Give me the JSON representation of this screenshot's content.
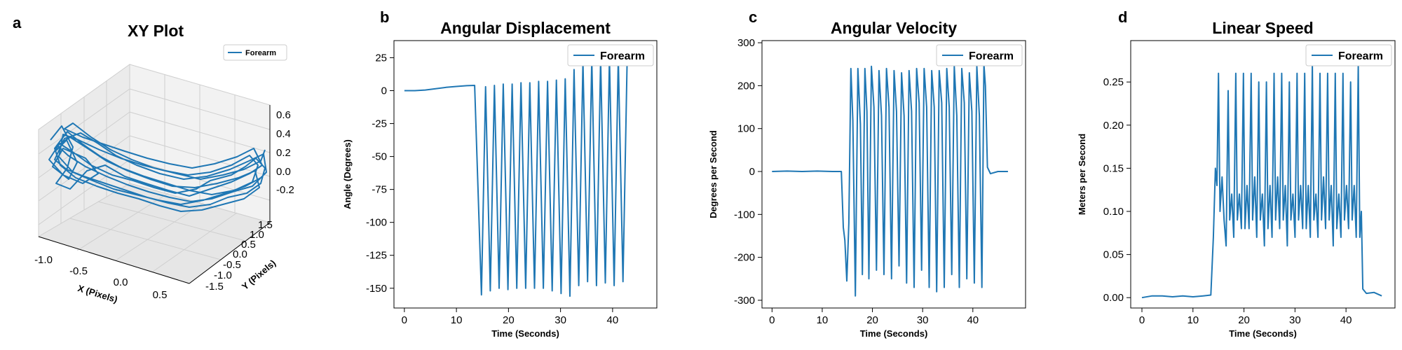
{
  "colors": {
    "series": "#1f77b4",
    "axis": "#000000",
    "grid3d": "#cfcfcf",
    "pane": "#f2f2f2"
  },
  "chart_data": [
    {
      "id": "a",
      "type": "line3d",
      "letter": "a",
      "title": "XY Plot",
      "xlabel": "X (Pixels)",
      "ylabel": "Y (Pixels)",
      "zlabel": "",
      "xlim": [
        -1.2,
        0.75
      ],
      "ylim": [
        -1.8,
        1.6
      ],
      "zlim": [
        -0.35,
        0.7
      ],
      "xticks": [
        "-1.0",
        "-0.5",
        "0.0",
        "0.5"
      ],
      "yticks": [
        "-1.5",
        "-1.0",
        "-0.5",
        "0.0",
        "0.5",
        "1.0",
        "1.5"
      ],
      "zticks": [
        "-0.2",
        "0.0",
        "0.2",
        "0.4",
        "0.6"
      ],
      "series": [
        {
          "name": "Forearm"
        }
      ],
      "legend": "top-right",
      "grid": true
    },
    {
      "id": "b",
      "type": "line",
      "letter": "b",
      "title": "Angular Displacement",
      "xlabel": "Time (Seconds)",
      "ylabel": "Angle (Degrees)",
      "xlim": [
        -2,
        48.5
      ],
      "ylim": [
        -165,
        38
      ],
      "xticks": [
        0,
        10,
        20,
        30,
        40
      ],
      "yticks": [
        25,
        0,
        -25,
        -50,
        -75,
        -100,
        -125,
        -150
      ],
      "series": [
        {
          "name": "Forearm",
          "points": [
            [
              0,
              0
            ],
            [
              2,
              0
            ],
            [
              4,
              0.5
            ],
            [
              6,
              1.5
            ],
            [
              8,
              2.5
            ],
            [
              10,
              3.2
            ],
            [
              12,
              3.8
            ],
            [
              13.5,
              4
            ],
            [
              14.8,
              -155
            ],
            [
              15.6,
              3
            ],
            [
              16.5,
              -152
            ],
            [
              17.3,
              4
            ],
            [
              18.2,
              -150
            ],
            [
              19.0,
              5
            ],
            [
              19.9,
              -151
            ],
            [
              20.7,
              5
            ],
            [
              21.6,
              -150
            ],
            [
              22.4,
              6
            ],
            [
              23.3,
              -150
            ],
            [
              24.1,
              6
            ],
            [
              25.0,
              -150
            ],
            [
              25.8,
              7
            ],
            [
              26.7,
              -150
            ],
            [
              27.5,
              7
            ],
            [
              28.4,
              -152
            ],
            [
              29.2,
              8
            ],
            [
              30.1,
              -154
            ],
            [
              30.9,
              9
            ],
            [
              31.8,
              -156
            ],
            [
              32.6,
              16
            ],
            [
              33.5,
              -148
            ],
            [
              34.3,
              22
            ],
            [
              35.2,
              -145
            ],
            [
              36.0,
              24
            ],
            [
              36.9,
              -148
            ],
            [
              37.7,
              24
            ],
            [
              38.6,
              -146
            ],
            [
              39.4,
              25
            ],
            [
              40.3,
              -148
            ],
            [
              41.1,
              25
            ],
            [
              42.0,
              -145
            ],
            [
              42.8,
              25
            ]
          ]
        }
      ],
      "legend": "top-right",
      "grid": false
    },
    {
      "id": "c",
      "type": "line",
      "letter": "c",
      "title": "Angular Velocity",
      "xlabel": "Time (Seconds)",
      "ylabel": "Degrees per Second",
      "xlim": [
        -2,
        50.5
      ],
      "ylim": [
        -318,
        305
      ],
      "xticks": [
        0,
        10,
        20,
        30,
        40
      ],
      "yticks": [
        300,
        200,
        100,
        0,
        -100,
        -200,
        -300
      ],
      "series": [
        {
          "name": "Forearm",
          "points": [
            [
              0,
              0
            ],
            [
              3,
              1
            ],
            [
              6,
              0
            ],
            [
              9,
              1
            ],
            [
              12,
              0
            ],
            [
              13.8,
              0
            ],
            [
              14.2,
              -130
            ],
            [
              14.5,
              -160
            ],
            [
              14.9,
              -255
            ],
            [
              15.3,
              -120
            ],
            [
              15.7,
              240
            ],
            [
              16.1,
              120
            ],
            [
              16.6,
              -290
            ],
            [
              17.1,
              240
            ],
            [
              17.6,
              110
            ],
            [
              18.0,
              -240
            ],
            [
              18.5,
              240
            ],
            [
              18.9,
              140
            ],
            [
              19.3,
              -250
            ],
            [
              19.8,
              245
            ],
            [
              20.3,
              150
            ],
            [
              20.8,
              -230
            ],
            [
              21.3,
              235
            ],
            [
              21.8,
              130
            ],
            [
              22.3,
              -240
            ],
            [
              22.8,
              240
            ],
            [
              23.3,
              150
            ],
            [
              23.8,
              -250
            ],
            [
              24.3,
              235
            ],
            [
              24.8,
              140
            ],
            [
              25.3,
              -220
            ],
            [
              25.8,
              230
            ],
            [
              26.3,
              130
            ],
            [
              26.8,
              -260
            ],
            [
              27.3,
              235
            ],
            [
              27.8,
              140
            ],
            [
              28.3,
              -270
            ],
            [
              28.8,
              240
            ],
            [
              29.3,
              160
            ],
            [
              29.8,
              -230
            ],
            [
              30.3,
              240
            ],
            [
              30.8,
              150
            ],
            [
              31.3,
              -270
            ],
            [
              31.8,
              235
            ],
            [
              32.3,
              150
            ],
            [
              32.8,
              -280
            ],
            [
              33.3,
              235
            ],
            [
              33.8,
              160
            ],
            [
              34.3,
              -270
            ],
            [
              34.8,
              240
            ],
            [
              35.3,
              150
            ],
            [
              35.8,
              -240
            ],
            [
              36.3,
              245
            ],
            [
              36.8,
              130
            ],
            [
              37.3,
              -270
            ],
            [
              37.8,
              240
            ],
            [
              38.3,
              160
            ],
            [
              38.8,
              -250
            ],
            [
              39.3,
              230
            ],
            [
              39.8,
              140
            ],
            [
              40.3,
              -260
            ],
            [
              40.8,
              245
            ],
            [
              41.3,
              130
            ],
            [
              41.8,
              -270
            ],
            [
              42.2,
              250
            ],
            [
              42.5,
              200
            ],
            [
              42.9,
              10
            ],
            [
              43.5,
              -5
            ],
            [
              45,
              0
            ],
            [
              47,
              0
            ]
          ]
        }
      ],
      "legend": "top-right",
      "grid": false
    },
    {
      "id": "d",
      "type": "line",
      "letter": "d",
      "title": "Linear Speed",
      "xlabel": "Time (Seconds)",
      "ylabel": "Meters per Second",
      "xlim": [
        -2.2,
        49.6
      ],
      "ylim": [
        -0.012,
        0.298
      ],
      "xticks": [
        0,
        10,
        20,
        30,
        40
      ],
      "yticks": [
        0.25,
        0.2,
        0.15,
        0.1,
        0.05,
        0.0
      ],
      "series": [
        {
          "name": "Forearm",
          "points": [
            [
              0,
              0
            ],
            [
              2,
              0.002
            ],
            [
              4,
              0.002
            ],
            [
              6,
              0.001
            ],
            [
              8,
              0.002
            ],
            [
              10,
              0.001
            ],
            [
              12,
              0.002
            ],
            [
              13.5,
              0.003
            ],
            [
              14,
              0.07
            ],
            [
              14.4,
              0.15
            ],
            [
              14.7,
              0.13
            ],
            [
              15.0,
              0.26
            ],
            [
              15.3,
              0.1
            ],
            [
              15.7,
              0.14
            ],
            [
              16.1,
              0.09
            ],
            [
              16.5,
              0.06
            ],
            [
              16.9,
              0.24
            ],
            [
              17.2,
              0.09
            ],
            [
              17.6,
              0.12
            ],
            [
              18.0,
              0.07
            ],
            [
              18.4,
              0.26
            ],
            [
              18.7,
              0.09
            ],
            [
              19.1,
              0.12
            ],
            [
              19.5,
              0.08
            ],
            [
              19.9,
              0.26
            ],
            [
              20.2,
              0.08
            ],
            [
              20.6,
              0.13
            ],
            [
              21.0,
              0.08
            ],
            [
              21.4,
              0.26
            ],
            [
              21.7,
              0.09
            ],
            [
              22.1,
              0.14
            ],
            [
              22.5,
              0.07
            ],
            [
              22.9,
              0.25
            ],
            [
              23.2,
              0.09
            ],
            [
              23.6,
              0.12
            ],
            [
              24.0,
              0.06
            ],
            [
              24.4,
              0.25
            ],
            [
              24.7,
              0.08
            ],
            [
              25.1,
              0.13
            ],
            [
              25.5,
              0.07
            ],
            [
              25.9,
              0.26
            ],
            [
              26.2,
              0.09
            ],
            [
              26.6,
              0.14
            ],
            [
              27.0,
              0.08
            ],
            [
              27.4,
              0.26
            ],
            [
              27.7,
              0.09
            ],
            [
              28.1,
              0.13
            ],
            [
              28.5,
              0.06
            ],
            [
              28.9,
              0.25
            ],
            [
              29.2,
              0.09
            ],
            [
              29.6,
              0.12
            ],
            [
              30.0,
              0.07
            ],
            [
              30.4,
              0.26
            ],
            [
              30.7,
              0.09
            ],
            [
              31.1,
              0.13
            ],
            [
              31.5,
              0.08
            ],
            [
              31.9,
              0.26
            ],
            [
              32.2,
              0.08
            ],
            [
              32.6,
              0.13
            ],
            [
              33.0,
              0.07
            ],
            [
              33.4,
              0.27
            ],
            [
              33.7,
              0.09
            ],
            [
              34.1,
              0.12
            ],
            [
              34.5,
              0.07
            ],
            [
              34.9,
              0.26
            ],
            [
              35.2,
              0.09
            ],
            [
              35.6,
              0.14
            ],
            [
              36.0,
              0.08
            ],
            [
              36.4,
              0.26
            ],
            [
              36.7,
              0.09
            ],
            [
              37.1,
              0.13
            ],
            [
              37.5,
              0.06
            ],
            [
              37.9,
              0.26
            ],
            [
              38.2,
              0.08
            ],
            [
              38.6,
              0.12
            ],
            [
              39.0,
              0.07
            ],
            [
              39.4,
              0.26
            ],
            [
              39.7,
              0.09
            ],
            [
              40.1,
              0.13
            ],
            [
              40.5,
              0.08
            ],
            [
              40.9,
              0.25
            ],
            [
              41.2,
              0.09
            ],
            [
              41.6,
              0.13
            ],
            [
              42.0,
              0.07
            ],
            [
              42.4,
              0.27
            ],
            [
              42.7,
              0.07
            ],
            [
              43.0,
              0.1
            ],
            [
              43.3,
              0.01
            ],
            [
              44,
              0.005
            ],
            [
              45.5,
              0.006
            ],
            [
              47,
              0.002
            ]
          ]
        }
      ],
      "legend": "top-right",
      "grid": false
    }
  ]
}
